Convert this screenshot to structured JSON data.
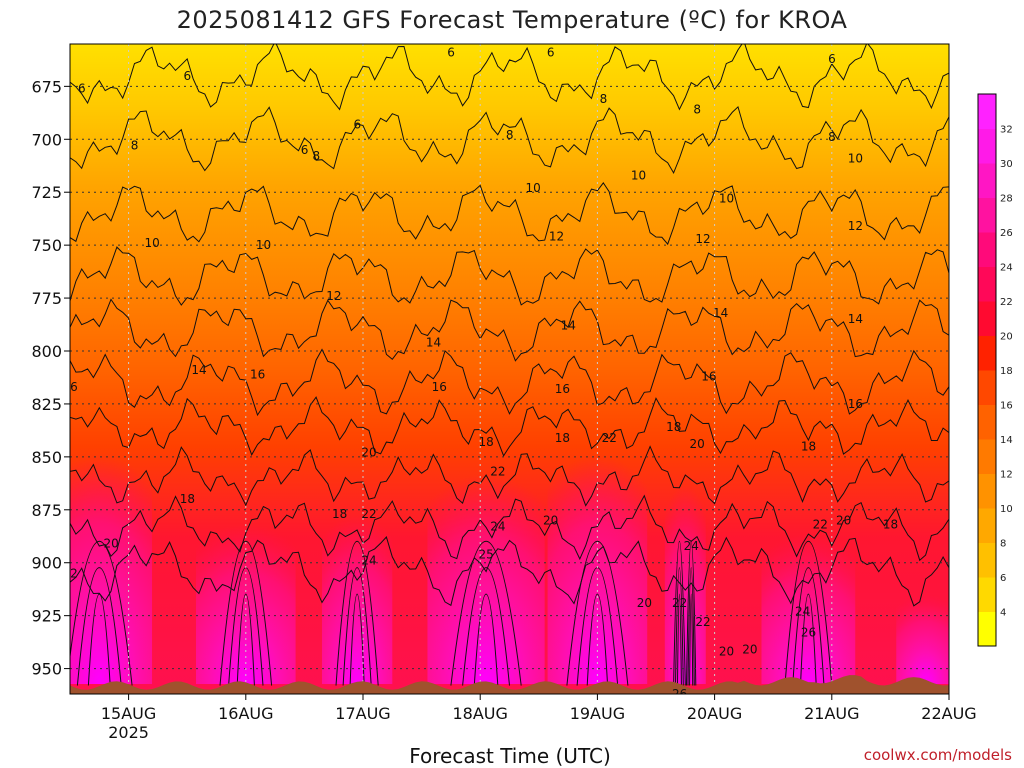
{
  "chart_data": {
    "type": "heatmap",
    "title": "2025081412 GFS Forecast Temperature (ºC) for KROA",
    "xlabel": "Forecast Time (UTC)",
    "ylabel": "",
    "credit": "coolwx.com/models",
    "x_ticks": [
      {
        "label": "15AUG",
        "sublabel": "2025",
        "x": 0.5
      },
      {
        "label": "16AUG",
        "sublabel": "",
        "x": 1.5
      },
      {
        "label": "17AUG",
        "sublabel": "",
        "x": 2.5
      },
      {
        "label": "18AUG",
        "sublabel": "",
        "x": 3.5
      },
      {
        "label": "19AUG",
        "sublabel": "",
        "x": 4.5
      },
      {
        "label": "20AUG",
        "sublabel": "",
        "x": 5.5
      },
      {
        "label": "21AUG",
        "sublabel": "",
        "x": 6.5
      },
      {
        "label": "22AUG",
        "sublabel": "",
        "x": 7.5
      }
    ],
    "xlim": [
      0,
      7.5
    ],
    "ylim": [
      962,
      655
    ],
    "y_ticks": [
      675,
      700,
      725,
      750,
      775,
      800,
      825,
      850,
      875,
      900,
      925,
      950
    ],
    "grid": true,
    "colorbar": {
      "levels": [
        4,
        6,
        8,
        10,
        12,
        14,
        16,
        18,
        20,
        22,
        24,
        26,
        28,
        30,
        32
      ],
      "colors": [
        "#ffff00",
        "#ffd900",
        "#ffc000",
        "#ffa800",
        "#ff9200",
        "#ff7a00",
        "#ff6200",
        "#ff4800",
        "#ff2200",
        "#ff0a30",
        "#ff0858",
        "#ff0a7a",
        "#ff12a0",
        "#ff16c4",
        "#ff1ae8",
        "#ff22ff"
      ]
    },
    "contour_labels": [
      {
        "t": 0.05,
        "p": 676,
        "v": "6"
      },
      {
        "t": 0.95,
        "p": 670,
        "v": "6"
      },
      {
        "t": 1.95,
        "p": 705,
        "v": "6"
      },
      {
        "t": 2.4,
        "p": 693,
        "v": "6"
      },
      {
        "t": 3.2,
        "p": 659,
        "v": "6"
      },
      {
        "t": 4.05,
        "p": 659,
        "v": "6"
      },
      {
        "t": 6.45,
        "p": 662,
        "v": "6"
      },
      {
        "t": 0.5,
        "p": 703,
        "v": "8"
      },
      {
        "t": 2.05,
        "p": 708,
        "v": "8"
      },
      {
        "t": 3.7,
        "p": 698,
        "v": "8"
      },
      {
        "t": 4.5,
        "p": 681,
        "v": "8"
      },
      {
        "t": 5.3,
        "p": 686,
        "v": "8"
      },
      {
        "t": 6.45,
        "p": 699,
        "v": "8"
      },
      {
        "t": 0.65,
        "p": 749,
        "v": "10"
      },
      {
        "t": 1.6,
        "p": 750,
        "v": "10"
      },
      {
        "t": 3.9,
        "p": 723,
        "v": "10"
      },
      {
        "t": 4.8,
        "p": 717,
        "v": "10"
      },
      {
        "t": 5.55,
        "p": 728,
        "v": "10"
      },
      {
        "t": 6.65,
        "p": 709,
        "v": "10"
      },
      {
        "t": 2.2,
        "p": 774,
        "v": "12"
      },
      {
        "t": 4.1,
        "p": 746,
        "v": "12"
      },
      {
        "t": 5.35,
        "p": 747,
        "v": "12"
      },
      {
        "t": 6.65,
        "p": 741,
        "v": "12"
      },
      {
        "t": 1.05,
        "p": 809,
        "v": "14"
      },
      {
        "t": 3.05,
        "p": 796,
        "v": "14"
      },
      {
        "t": 4.2,
        "p": 788,
        "v": "14"
      },
      {
        "t": 5.5,
        "p": 782,
        "v": "14"
      },
      {
        "t": 6.65,
        "p": 785,
        "v": "14"
      },
      {
        "t": -0.05,
        "p": 817,
        "v": "16"
      },
      {
        "t": 1.55,
        "p": 811,
        "v": "16"
      },
      {
        "t": 3.1,
        "p": 817,
        "v": "16"
      },
      {
        "t": 4.15,
        "p": 818,
        "v": "16"
      },
      {
        "t": 5.4,
        "p": 812,
        "v": "16"
      },
      {
        "t": 6.65,
        "p": 825,
        "v": "16"
      },
      {
        "t": 0.95,
        "p": 870,
        "v": "18"
      },
      {
        "t": 2.25,
        "p": 877,
        "v": "18"
      },
      {
        "t": 3.5,
        "p": 843,
        "v": "18"
      },
      {
        "t": 4.15,
        "p": 841,
        "v": "18"
      },
      {
        "t": 5.1,
        "p": 836,
        "v": "18"
      },
      {
        "t": 6.25,
        "p": 845,
        "v": "18"
      },
      {
        "t": 6.95,
        "p": 882,
        "v": "18"
      },
      {
        "t": 0.3,
        "p": 891,
        "v": "20"
      },
      {
        "t": 2.5,
        "p": 848,
        "v": "20"
      },
      {
        "t": 4.05,
        "p": 880,
        "v": "20"
      },
      {
        "t": 4.85,
        "p": 919,
        "v": "20"
      },
      {
        "t": 5.3,
        "p": 844,
        "v": "20"
      },
      {
        "t": 5.55,
        "p": 942,
        "v": "20"
      },
      {
        "t": 5.75,
        "p": 941,
        "v": "20"
      },
      {
        "t": 6.55,
        "p": 880,
        "v": "20"
      },
      {
        "t": -0.05,
        "p": 905,
        "v": "22"
      },
      {
        "t": 2.5,
        "p": 877,
        "v": "22"
      },
      {
        "t": 3.6,
        "p": 857,
        "v": "22"
      },
      {
        "t": 4.55,
        "p": 841,
        "v": "22"
      },
      {
        "t": 5.15,
        "p": 919,
        "v": "22"
      },
      {
        "t": 5.35,
        "p": 928,
        "v": "22"
      },
      {
        "t": 6.35,
        "p": 882,
        "v": "22"
      },
      {
        "t": 2.5,
        "p": 899,
        "v": "24"
      },
      {
        "t": 3.6,
        "p": 883,
        "v": "24"
      },
      {
        "t": 5.25,
        "p": 892,
        "v": "24"
      },
      {
        "t": 6.2,
        "p": 923,
        "v": "24"
      },
      {
        "t": 3.5,
        "p": 896,
        "v": "25"
      },
      {
        "t": 6.25,
        "p": 933,
        "v": "26"
      },
      {
        "t": 5.15,
        "p": 962,
        "v": "26"
      }
    ]
  }
}
